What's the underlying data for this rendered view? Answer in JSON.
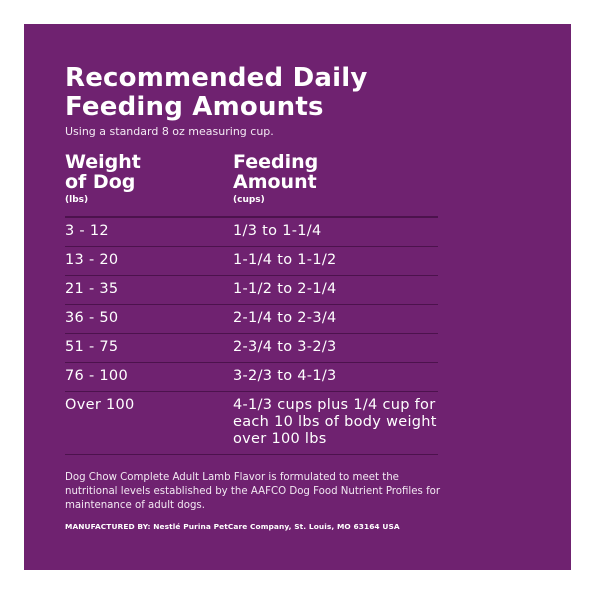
{
  "panel": {
    "background": "#6f2270",
    "title": "Recommended Daily Feeding Amounts",
    "subtitle": "Using a standard 8 oz measuring cup."
  },
  "table": {
    "headers": [
      {
        "main": "Weight\nof Dog",
        "unit": "(lbs)"
      },
      {
        "main": "Feeding\nAmount",
        "unit": "(cups)"
      }
    ],
    "rows": [
      {
        "weight": "3 - 12",
        "amount": "1/3 to 1-1/4"
      },
      {
        "weight": "13 - 20",
        "amount": "1-1/4 to 1-1/2"
      },
      {
        "weight": "21 - 35",
        "amount": "1-1/2 to 2-1/4"
      },
      {
        "weight": "36 - 50",
        "amount": "2-1/4 to 2-3/4"
      },
      {
        "weight": "51 - 75",
        "amount": "2-3/4 to 3-2/3"
      },
      {
        "weight": "76 - 100",
        "amount": "3-2/3 to 4-1/3"
      },
      {
        "weight": "Over 100",
        "amount": "4-1/3 cups plus 1/4 cup for each 10 lbs of body weight over 100 lbs"
      }
    ]
  },
  "footnote": "Dog Chow Complete Adult Lamb Flavor is formulated to meet the nutritional levels established by the AAFCO Dog Food Nutrient Profiles for maintenance of adult dogs.",
  "manufacturer": "MANUFACTURED BY: Nestlé Purina PetCare Company, St. Louis, MO 63164 USA"
}
